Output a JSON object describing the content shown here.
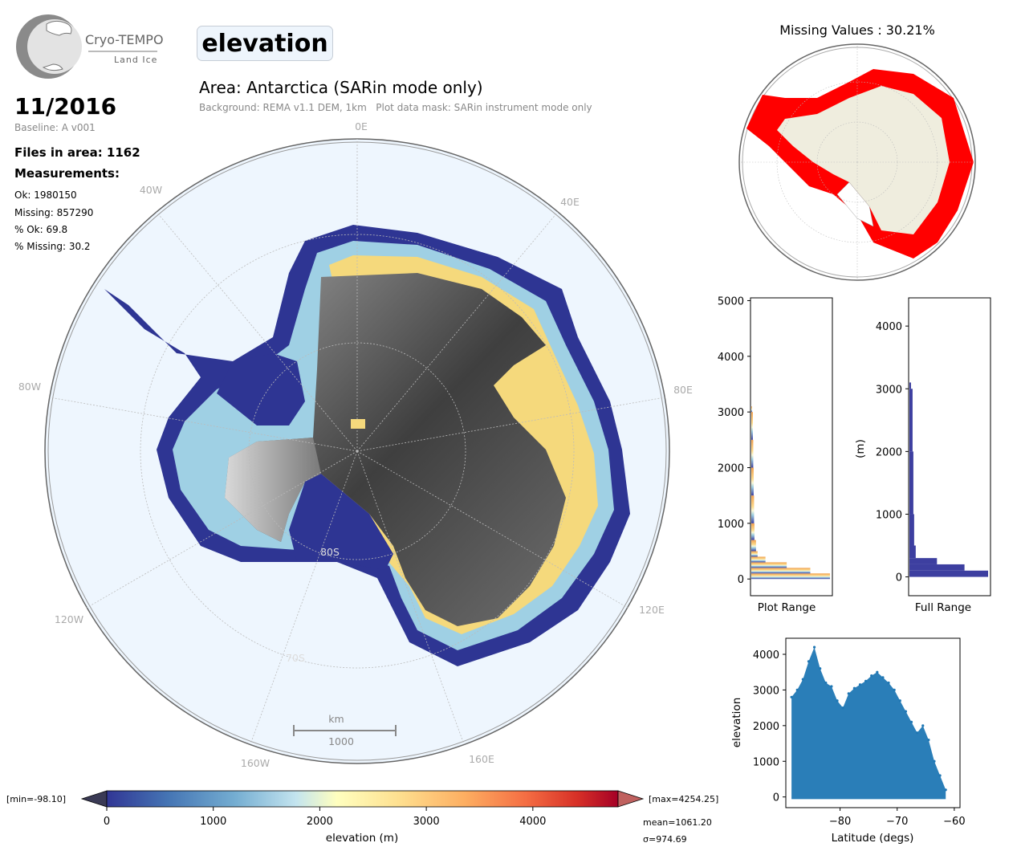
{
  "logo": {
    "name": "Cryo-TEMPO",
    "sub": "Land Ice"
  },
  "parameter": "elevation",
  "area_title": "Area: Antarctica (SARin mode only)",
  "background_note": "Background: REMA v1.1 DEM, 1km   Plot data mask: SARin instrument mode only",
  "date": "11/2016",
  "baseline": "Baseline: A v001",
  "files_in_area": "Files in area: 1162",
  "measurements_heading": "Measurements:",
  "stats": {
    "ok": "Ok: 1980150",
    "missing": "Missing: 857290",
    "pct_ok": "% Ok: 69.8",
    "pct_missing": "% Missing: 30.2"
  },
  "map": {
    "lon_labels": [
      "0E",
      "40E",
      "80E",
      "120E",
      "160E",
      "160W",
      "120W",
      "80W",
      "40W"
    ],
    "lat_labels": [
      "80S",
      "70S"
    ],
    "scalebar_unit": "km",
    "scalebar_value": "1000"
  },
  "missing_map_title": "Missing Values : 30.21%",
  "colorbar": {
    "min_label": "[min=-98.10]",
    "max_label": "[max=4254.25]",
    "ticks": [
      "0",
      "1000",
      "2000",
      "3000",
      "4000"
    ],
    "label": "elevation (m)",
    "mean": "mean=1061.20",
    "sigma": "σ=974.69"
  },
  "colors": {
    "ocean": "#eef6fe",
    "missing": "#ff0000",
    "land": "#efedde",
    "hist_full": "#3d3fa0",
    "scatter": "#1f77b4"
  },
  "chart_data": [
    {
      "type": "bar",
      "orientation": "horizontal",
      "title": "",
      "xlabel": "Plot Range",
      "ylabel": "",
      "ylim": [
        -300,
        5050
      ],
      "yticks": [
        0,
        1000,
        2000,
        3000,
        4000,
        5000
      ],
      "bins": [
        0,
        100,
        200,
        300,
        400,
        500,
        700,
        1000,
        1500,
        2000,
        2500,
        3000
      ],
      "counts": [
        1.0,
        0.75,
        0.45,
        0.18,
        0.08,
        0.06,
        0.04,
        0.035,
        0.03,
        0.025,
        0.02,
        0.01
      ]
    },
    {
      "type": "bar",
      "orientation": "horizontal",
      "title": "",
      "xlabel": "Full Range",
      "ylabel": "(m)",
      "ylim": [
        -300,
        4450
      ],
      "yticks": [
        0,
        1000,
        2000,
        3000,
        4000
      ],
      "bins": [
        0,
        100,
        200,
        300,
        500,
        1000,
        2000,
        3000
      ],
      "counts": [
        1.0,
        0.7,
        0.35,
        0.08,
        0.06,
        0.05,
        0.04,
        0.02
      ]
    },
    {
      "type": "scatter",
      "title": "",
      "xlabel": "Latitude (degs)",
      "ylabel": "elevation",
      "xlim": [
        -89.5,
        -59
      ],
      "ylim": [
        -300,
        4450
      ],
      "xticks": [
        -80,
        -70,
        -60
      ],
      "yticks": [
        0,
        1000,
        2000,
        3000,
        4000
      ],
      "envelope": [
        {
          "x": -88.5,
          "y": 2800
        },
        {
          "x": -87.5,
          "y": 3000
        },
        {
          "x": -86.5,
          "y": 3300
        },
        {
          "x": -85.5,
          "y": 3800
        },
        {
          "x": -84.5,
          "y": 4200
        },
        {
          "x": -83.5,
          "y": 3600
        },
        {
          "x": -82.5,
          "y": 3200
        },
        {
          "x": -81.5,
          "y": 3100
        },
        {
          "x": -80.5,
          "y": 2700
        },
        {
          "x": -79.5,
          "y": 2500
        },
        {
          "x": -78.5,
          "y": 2900
        },
        {
          "x": -77.5,
          "y": 3050
        },
        {
          "x": -76.5,
          "y": 3150
        },
        {
          "x": -75.5,
          "y": 3250
        },
        {
          "x": -74.5,
          "y": 3400
        },
        {
          "x": -73.5,
          "y": 3500
        },
        {
          "x": -72.5,
          "y": 3350
        },
        {
          "x": -71.5,
          "y": 3200
        },
        {
          "x": -70.5,
          "y": 3000
        },
        {
          "x": -69.5,
          "y": 2700
        },
        {
          "x": -68.5,
          "y": 2400
        },
        {
          "x": -67.5,
          "y": 2100
        },
        {
          "x": -66.5,
          "y": 1800
        },
        {
          "x": -65.5,
          "y": 2000
        },
        {
          "x": -64.5,
          "y": 1600
        },
        {
          "x": -63.5,
          "y": 1000
        },
        {
          "x": -62.5,
          "y": 600
        },
        {
          "x": -61.5,
          "y": 200
        }
      ]
    }
  ]
}
